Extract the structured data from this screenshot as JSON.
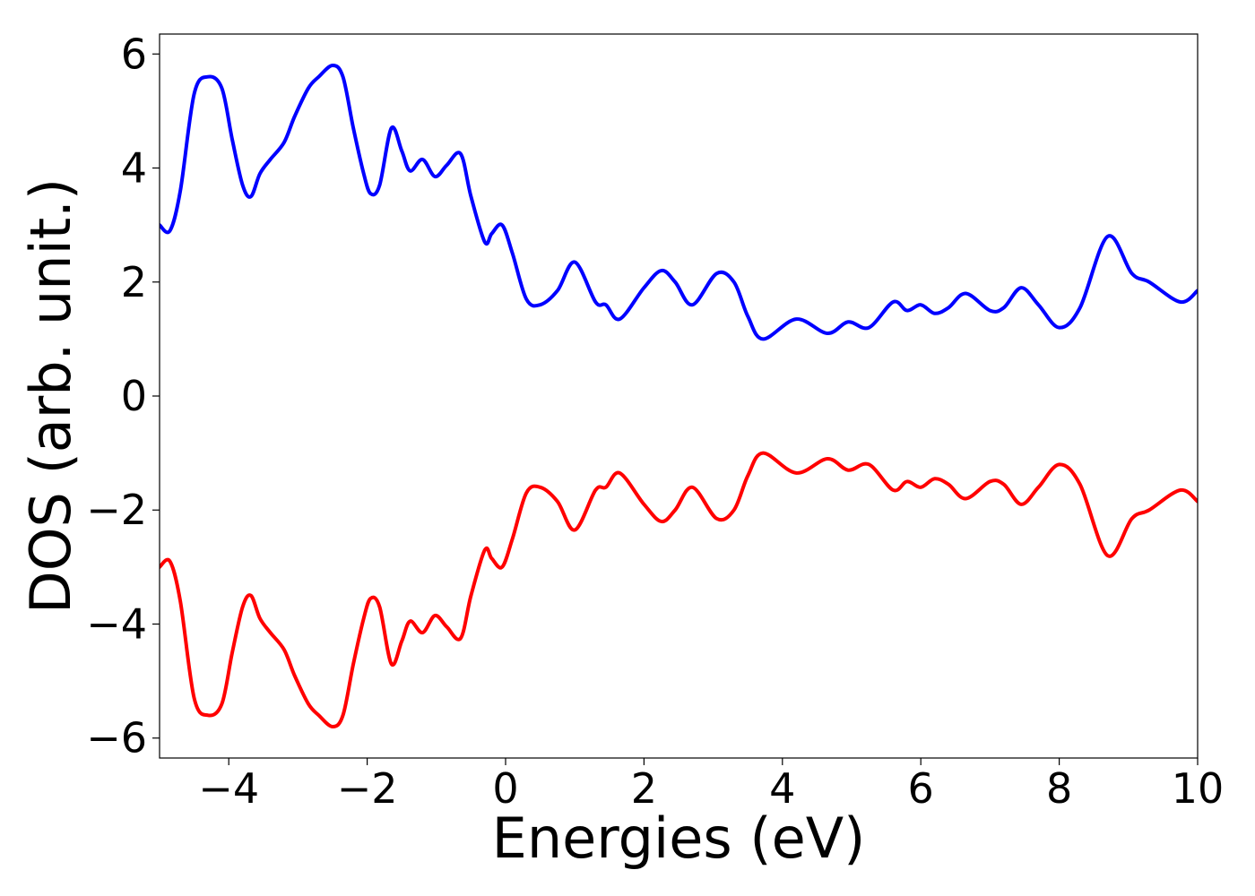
{
  "chart_data": {
    "type": "line",
    "title": "",
    "xlabel": "Energies (eV)",
    "ylabel": "DOS (arb. unit.)",
    "xlim": [
      -5,
      10
    ],
    "ylim": [
      -6.35,
      6.35
    ],
    "xticks": [
      -4,
      -2,
      0,
      2,
      4,
      6,
      8,
      10
    ],
    "xtick_labels": [
      "−4",
      "−2",
      "0",
      "2",
      "4",
      "6",
      "8",
      "10"
    ],
    "yticks": [
      -6,
      -4,
      -2,
      0,
      2,
      4,
      6
    ],
    "ytick_labels": [
      "−6",
      "−4",
      "−2",
      "0",
      "2",
      "4",
      "6"
    ],
    "grid": false,
    "legend": "none",
    "series": [
      {
        "color": "#0000ff",
        "x": [
          -5.0,
          -4.85,
          -4.7,
          -4.5,
          -4.3,
          -4.1,
          -3.95,
          -3.8,
          -3.68,
          -3.55,
          -3.4,
          -3.2,
          -3.05,
          -2.85,
          -2.7,
          -2.5,
          -2.35,
          -2.2,
          -2.05,
          -1.95,
          -1.82,
          -1.65,
          -1.5,
          -1.38,
          -1.2,
          -1.02,
          -0.85,
          -0.65,
          -0.5,
          -0.3,
          -0.2,
          -0.05,
          0.1,
          0.3,
          0.5,
          0.75,
          1.0,
          1.3,
          1.45,
          1.65,
          2.0,
          2.25,
          2.45,
          2.7,
          3.05,
          3.3,
          3.5,
          3.72,
          4.2,
          4.65,
          4.95,
          5.25,
          5.6,
          5.8,
          6.0,
          6.2,
          6.4,
          6.65,
          7.0,
          7.2,
          7.45,
          7.7,
          8.0,
          8.3,
          8.7,
          9.05,
          9.3,
          9.75,
          10.0
        ],
        "y": [
          3.0,
          2.9,
          3.6,
          5.3,
          5.6,
          5.4,
          4.5,
          3.7,
          3.5,
          3.9,
          4.15,
          4.45,
          4.9,
          5.4,
          5.6,
          5.8,
          5.6,
          4.7,
          3.9,
          3.55,
          3.7,
          4.7,
          4.3,
          3.95,
          4.15,
          3.85,
          4.05,
          4.25,
          3.5,
          2.7,
          2.85,
          3.0,
          2.5,
          1.7,
          1.6,
          1.85,
          2.35,
          1.65,
          1.6,
          1.35,
          1.9,
          2.2,
          2.0,
          1.6,
          2.15,
          2.0,
          1.4,
          1.0,
          1.35,
          1.1,
          1.3,
          1.2,
          1.65,
          1.5,
          1.6,
          1.45,
          1.55,
          1.8,
          1.5,
          1.55,
          1.9,
          1.6,
          1.2,
          1.55,
          2.8,
          2.15,
          2.0,
          1.65,
          1.85
        ]
      },
      {
        "color": "#ff0000",
        "x": [
          -5.0,
          -4.85,
          -4.7,
          -4.5,
          -4.3,
          -4.1,
          -3.95,
          -3.8,
          -3.68,
          -3.55,
          -3.4,
          -3.2,
          -3.05,
          -2.85,
          -2.7,
          -2.5,
          -2.35,
          -2.2,
          -2.05,
          -1.95,
          -1.82,
          -1.65,
          -1.5,
          -1.38,
          -1.2,
          -1.02,
          -0.85,
          -0.65,
          -0.5,
          -0.3,
          -0.2,
          -0.05,
          0.1,
          0.3,
          0.5,
          0.75,
          1.0,
          1.3,
          1.45,
          1.65,
          2.0,
          2.25,
          2.45,
          2.7,
          3.05,
          3.3,
          3.5,
          3.72,
          4.2,
          4.65,
          4.95,
          5.25,
          5.6,
          5.8,
          6.0,
          6.2,
          6.4,
          6.65,
          7.0,
          7.2,
          7.45,
          7.7,
          8.0,
          8.3,
          8.7,
          9.05,
          9.3,
          9.75,
          10.0
        ],
        "y": [
          -3.0,
          -2.9,
          -3.6,
          -5.3,
          -5.6,
          -5.4,
          -4.5,
          -3.7,
          -3.5,
          -3.9,
          -4.15,
          -4.45,
          -4.9,
          -5.4,
          -5.6,
          -5.8,
          -5.6,
          -4.7,
          -3.9,
          -3.55,
          -3.7,
          -4.7,
          -4.3,
          -3.95,
          -4.15,
          -3.85,
          -4.05,
          -4.25,
          -3.5,
          -2.7,
          -2.85,
          -3.0,
          -2.5,
          -1.7,
          -1.6,
          -1.85,
          -2.35,
          -1.65,
          -1.6,
          -1.35,
          -1.9,
          -2.2,
          -2.0,
          -1.6,
          -2.15,
          -2.0,
          -1.4,
          -1.0,
          -1.35,
          -1.1,
          -1.3,
          -1.2,
          -1.65,
          -1.5,
          -1.6,
          -1.45,
          -1.55,
          -1.8,
          -1.5,
          -1.55,
          -1.9,
          -1.6,
          -1.2,
          -1.55,
          -2.8,
          -2.15,
          -2.0,
          -1.65,
          -1.85
        ]
      }
    ]
  }
}
